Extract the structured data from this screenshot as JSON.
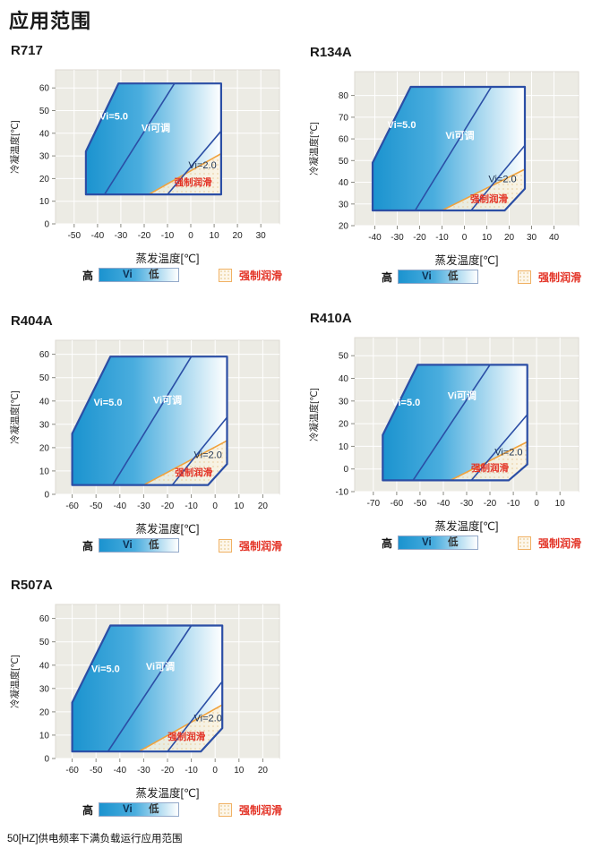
{
  "page": {
    "title": "应用范围",
    "footnote": "50[HZ]供电频率下满负载运行应用范围"
  },
  "legend": {
    "high": "高",
    "vi": "Vi",
    "low": "低",
    "forced_lube": "强制润滑"
  },
  "colors": {
    "envelope_stroke": "#2b4ea5",
    "fill_start": "#1b93cf",
    "fill_mid": "#4aadde",
    "fill_end": "#ffffff",
    "panel_bg": "#ecebe4",
    "grid": "#ffffff",
    "orange": "#f0a23c",
    "red": "#e33225",
    "vi2_text": "#1b3150",
    "white_text": "#ffffff",
    "lube_fill": "#fbf2e0",
    "lube_dot": "#ecd3a8",
    "tick_color": "#888880",
    "tick_label": "#222222"
  },
  "chart_data": [
    {
      "type": "area",
      "title": "R717",
      "xlabel": "蒸发温度[℃]",
      "ylabel": "冷凝温度[℃]",
      "xlim": [
        -58,
        38
      ],
      "ylim": [
        0,
        68
      ],
      "xticks": [
        -50,
        -40,
        -30,
        -20,
        -10,
        0,
        10,
        20,
        30
      ],
      "yticks": [
        0,
        10,
        20,
        30,
        40,
        50,
        60
      ],
      "envelope": [
        [
          -45,
          13
        ],
        [
          -45,
          32
        ],
        [
          -31,
          62
        ],
        [
          13,
          62
        ],
        [
          13,
          13
        ]
      ],
      "lube_region": [
        [
          -18,
          13
        ],
        [
          13,
          13
        ],
        [
          13,
          31
        ]
      ],
      "orange_line": [
        [
          -18,
          13
        ],
        [
          13,
          31
        ]
      ],
      "vi5_line": [
        [
          -37,
          13
        ],
        [
          -7,
          62
        ]
      ],
      "vi2_line": [
        [
          -10,
          13
        ],
        [
          13,
          41
        ]
      ],
      "labels": {
        "vi5": {
          "text": "Vi=5.0",
          "x": -33,
          "y": 46
        },
        "vi_adj": {
          "text": "Vi可调",
          "x": -15,
          "y": 41
        },
        "vi2": {
          "text": "Vi=2.0",
          "x": 5,
          "y": 24.5
        },
        "lube": {
          "text": "强制润滑",
          "x": 1,
          "y": 17
        }
      }
    },
    {
      "type": "area",
      "title": "R134A",
      "xlabel": "蒸发温度[℃]",
      "ylabel": "冷凝温度[℃]",
      "xlim": [
        -49,
        51
      ],
      "ylim": [
        20,
        91
      ],
      "xticks": [
        -40,
        -30,
        -20,
        -10,
        0,
        10,
        20,
        30,
        40
      ],
      "yticks": [
        20,
        30,
        40,
        50,
        60,
        70,
        80
      ],
      "envelope": [
        [
          -41,
          27
        ],
        [
          -41,
          49
        ],
        [
          -24,
          84
        ],
        [
          27,
          84
        ],
        [
          27,
          37
        ],
        [
          18,
          27
        ]
      ],
      "lube_region": [
        [
          -10,
          27
        ],
        [
          18,
          27
        ],
        [
          27,
          37
        ],
        [
          27,
          46
        ]
      ],
      "orange_line": [
        [
          -10,
          27
        ],
        [
          27,
          46
        ]
      ],
      "vi5_line": [
        [
          -22,
          27
        ],
        [
          12,
          84
        ]
      ],
      "vi2_line": [
        [
          3,
          27
        ],
        [
          27,
          57
        ]
      ],
      "labels": {
        "vi5": {
          "text": "Vi=5.0",
          "x": -28,
          "y": 65
        },
        "vi_adj": {
          "text": "Vi可调",
          "x": -2,
          "y": 60
        },
        "vi2": {
          "text": "Vi=2.0",
          "x": 17,
          "y": 40
        },
        "lube": {
          "text": "强制润滑",
          "x": 11,
          "y": 31
        }
      }
    },
    {
      "type": "area",
      "title": "R404A",
      "xlabel": "蒸发温度[℃]",
      "ylabel": "冷凝温度[℃]",
      "xlim": [
        -67,
        27
      ],
      "ylim": [
        0,
        66
      ],
      "xticks": [
        -60,
        -50,
        -40,
        -30,
        -20,
        -10,
        0,
        10,
        20
      ],
      "yticks": [
        0,
        10,
        20,
        30,
        40,
        50,
        60
      ],
      "envelope": [
        [
          -60,
          4
        ],
        [
          -60,
          26
        ],
        [
          -44,
          59
        ],
        [
          5,
          59
        ],
        [
          5,
          13
        ],
        [
          -3,
          4
        ]
      ],
      "lube_region": [
        [
          -30,
          4
        ],
        [
          -3,
          4
        ],
        [
          5,
          13
        ],
        [
          5,
          23
        ]
      ],
      "orange_line": [
        [
          -30,
          4
        ],
        [
          5,
          23
        ]
      ],
      "vi5_line": [
        [
          -43,
          4
        ],
        [
          -10,
          59
        ]
      ],
      "vi2_line": [
        [
          -18,
          4
        ],
        [
          5,
          33
        ]
      ],
      "labels": {
        "vi5": {
          "text": "Vi=5.0",
          "x": -45,
          "y": 38
        },
        "vi_adj": {
          "text": "Vi可调",
          "x": -20,
          "y": 39
        },
        "vi2": {
          "text": "Vi=2.0",
          "x": -3,
          "y": 15.5
        },
        "lube": {
          "text": "强制润滑",
          "x": -9,
          "y": 8
        }
      }
    },
    {
      "type": "area",
      "title": "R410A",
      "xlabel": "蒸发温度[℃]",
      "ylabel": "冷凝温度[℃]",
      "xlim": [
        -78,
        18
      ],
      "ylim": [
        -10,
        58
      ],
      "xticks": [
        -70,
        -60,
        -50,
        -40,
        -30,
        -20,
        -10,
        0,
        10
      ],
      "yticks": [
        -10,
        0,
        10,
        20,
        30,
        40,
        50
      ],
      "envelope": [
        [
          -66,
          -5
        ],
        [
          -66,
          15
        ],
        [
          -51,
          46
        ],
        [
          -4,
          46
        ],
        [
          -4,
          2
        ],
        [
          -12,
          -5
        ]
      ],
      "lube_region": [
        [
          -37,
          -5
        ],
        [
          -12,
          -5
        ],
        [
          -4,
          2
        ],
        [
          -4,
          12
        ]
      ],
      "orange_line": [
        [
          -37,
          -5
        ],
        [
          -4,
          12
        ]
      ],
      "vi5_line": [
        [
          -53,
          -5
        ],
        [
          -20,
          46
        ]
      ],
      "vi2_line": [
        [
          -28,
          -5
        ],
        [
          -4,
          24
        ]
      ],
      "labels": {
        "vi5": {
          "text": "Vi=5.0",
          "x": -56,
          "y": 28
        },
        "vi_adj": {
          "text": "Vi可调",
          "x": -32,
          "y": 31
        },
        "vi2": {
          "text": "Vi=2.0",
          "x": -12,
          "y": 6
        },
        "lube": {
          "text": "强制润滑",
          "x": -20,
          "y": -1
        }
      }
    },
    {
      "type": "area",
      "title": "R507A",
      "xlabel": "蒸发温度[℃]",
      "ylabel": "冷凝温度[℃]",
      "xlim": [
        -67,
        27
      ],
      "ylim": [
        0,
        66
      ],
      "xticks": [
        -60,
        -50,
        -40,
        -30,
        -20,
        -10,
        0,
        10,
        20
      ],
      "yticks": [
        0,
        10,
        20,
        30,
        40,
        50,
        60
      ],
      "envelope": [
        [
          -60,
          3
        ],
        [
          -60,
          24
        ],
        [
          -44,
          57
        ],
        [
          3,
          57
        ],
        [
          3,
          13
        ],
        [
          -6,
          3
        ]
      ],
      "lube_region": [
        [
          -32,
          3
        ],
        [
          -6,
          3
        ],
        [
          3,
          13
        ],
        [
          3,
          23
        ]
      ],
      "orange_line": [
        [
          -32,
          3
        ],
        [
          3,
          23
        ]
      ],
      "vi5_line": [
        [
          -45,
          3
        ],
        [
          -10,
          57
        ]
      ],
      "vi2_line": [
        [
          -20,
          3
        ],
        [
          3,
          33
        ]
      ],
      "labels": {
        "vi5": {
          "text": "Vi=5.0",
          "x": -46,
          "y": 37
        },
        "vi_adj": {
          "text": "Vi可调",
          "x": -23,
          "y": 38
        },
        "vi2": {
          "text": "Vi=2.0",
          "x": -3,
          "y": 16
        },
        "lube": {
          "text": "强制润滑",
          "x": -12,
          "y": 8
        }
      }
    }
  ]
}
